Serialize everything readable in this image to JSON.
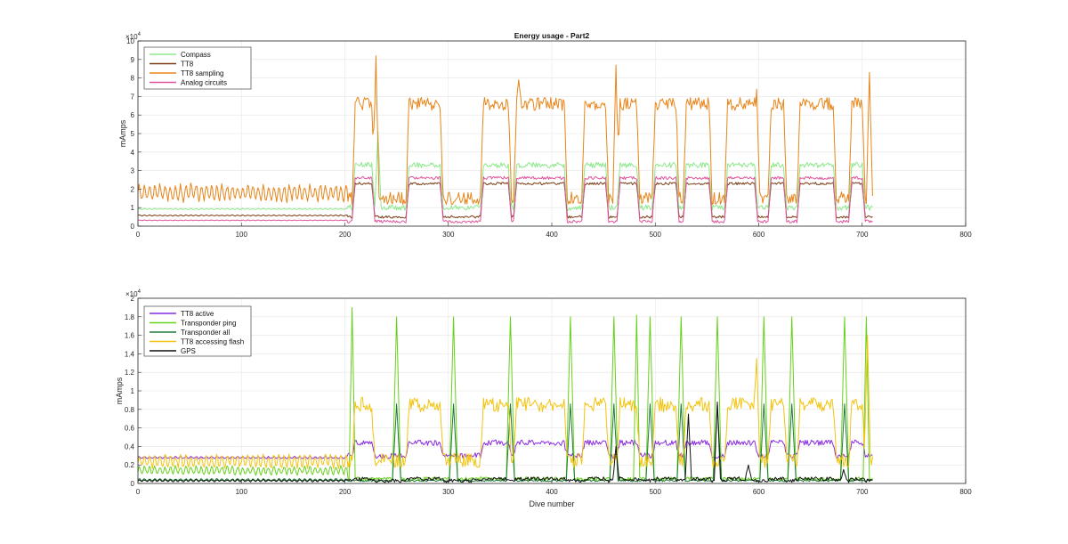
{
  "figure": {
    "background": "#ffffff",
    "axis_color": "#262626",
    "grid_color": "#e6e6e6"
  },
  "chart_data": [
    {
      "type": "line",
      "title": "Energy usage - Part2",
      "xlabel": "",
      "ylabel": "mAmps",
      "y_exponent_label": "×10",
      "y_exponent_power": "4",
      "xlim": [
        0,
        800
      ],
      "ylim": [
        0,
        10
      ],
      "x_ticks": [
        "0",
        "100",
        "200",
        "300",
        "400",
        "500",
        "600",
        "700",
        "800"
      ],
      "y_ticks": [
        "0",
        "1",
        "2",
        "3",
        "4",
        "5",
        "6",
        "7",
        "8",
        "9",
        "10"
      ],
      "grid": true,
      "legend_position": "top-left",
      "series": [
        {
          "name": "Compass",
          "color": "#8de88d",
          "gen": {
            "pre": 0.9,
            "preAmp": 0.05,
            "base": 1.0,
            "high": 3.3,
            "noise": 0.15,
            "spikes": [
              [
                232,
                5.1
              ]
            ]
          }
        },
        {
          "name": "TT8",
          "color": "#7a3a12",
          "gen": {
            "pre": 0.55,
            "preAmp": 0.05,
            "base": 0.5,
            "high": 2.3,
            "noise": 0.07,
            "spikes": []
          }
        },
        {
          "name": "TT8 sampling",
          "color": "#e8851a",
          "gen": {
            "pre": 1.4,
            "preAmp": 0.8,
            "base": 1.5,
            "high": 6.6,
            "noise": 0.35,
            "spikes": [
              [
                230,
                9.2
              ],
              [
                368,
                7.9
              ],
              [
                462,
                8.7
              ],
              [
                598,
                7.4
              ],
              [
                707,
                8.3
              ]
            ]
          }
        },
        {
          "name": "Analog circuits",
          "color": "#e0559a",
          "gen": {
            "pre": 0.3,
            "preAmp": 0.03,
            "base": 0.25,
            "high": 2.6,
            "noise": 0.08,
            "spikes": []
          }
        }
      ]
    },
    {
      "type": "line",
      "title": "",
      "xlabel": "Dive number",
      "ylabel": "mAmps",
      "y_exponent_label": "×10",
      "y_exponent_power": "4",
      "xlim": [
        0,
        800
      ],
      "ylim": [
        0,
        2
      ],
      "x_ticks": [
        "0",
        "100",
        "200",
        "300",
        "400",
        "500",
        "600",
        "700",
        "800"
      ],
      "y_ticks": [
        "0",
        "0.2",
        "0.4",
        "0.6",
        "0.8",
        "1",
        "1.2",
        "1.4",
        "1.6",
        "1.8",
        "2"
      ],
      "grid": true,
      "legend_position": "top-left",
      "series": [
        {
          "name": "TT8 active",
          "color": "#8a2be2",
          "gen": {
            "pre": 0.27,
            "preAmp": 0.02,
            "base": 0.3,
            "high": 0.44,
            "noise": 0.03,
            "spikes": []
          }
        },
        {
          "name": "Transponder ping",
          "color": "#66d11a",
          "gen": {
            "pre": 0.1,
            "preAmp": 0.08,
            "base": 0.05,
            "high": 0.05,
            "noise": 0.02,
            "peak": 1.75,
            "spikes": [
              [
                207,
                1.9
              ],
              [
                482,
                1.82
              ],
              [
                704,
                1.8
              ]
            ]
          }
        },
        {
          "name": "Transponder all",
          "color": "#1f7a3a",
          "gen": {
            "pre": 0.03,
            "preAmp": 0.02,
            "base": 0.03,
            "high": 0.03,
            "noise": 0.01,
            "peak": 0.83,
            "spikes": []
          }
        },
        {
          "name": "TT8 accessing flash",
          "color": "#f2c40f",
          "gen": {
            "pre": 0.18,
            "preAmp": 0.12,
            "base": 0.25,
            "high": 0.85,
            "noise": 0.08,
            "spikes": [
              [
                598,
                1.35
              ],
              [
                705,
                1.6
              ]
            ]
          }
        },
        {
          "name": "GPS",
          "color": "#111111",
          "gen": {
            "pre": 0.02,
            "preAmp": 0.02,
            "base": 0.03,
            "high": 0.05,
            "noise": 0.02,
            "spikes": [
              [
                462,
                0.4
              ],
              [
                532,
                0.75
              ],
              [
                560,
                0.88
              ],
              [
                590,
                0.2
              ],
              [
                682,
                0.15
              ]
            ]
          }
        }
      ]
    }
  ],
  "dive_pattern": {
    "start": 203,
    "end": 710,
    "plateaus": [
      [
        210,
        226
      ],
      [
        262,
        292
      ],
      [
        334,
        358
      ],
      [
        366,
        412
      ],
      [
        432,
        452
      ],
      [
        466,
        482
      ],
      [
        500,
        520
      ],
      [
        530,
        552
      ],
      [
        570,
        596
      ],
      [
        612,
        624
      ],
      [
        640,
        672
      ],
      [
        690,
        700
      ]
    ],
    "dip_centers": [
      250,
      305,
      360,
      418,
      460,
      495,
      525,
      560,
      605,
      632,
      683
    ]
  }
}
